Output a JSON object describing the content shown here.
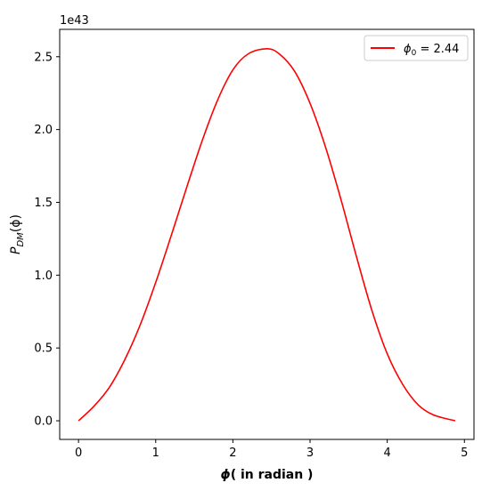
{
  "chart_data": {
    "type": "line",
    "xlabel_sym": "ϕ",
    "xlabel_rest": "( in radian )",
    "ylabel": {
      "base": "P",
      "sub": "DM",
      "rest": "(ϕ)"
    },
    "offset_text": "1e43",
    "xlim": [
      -0.244,
      5.124
    ],
    "ylim": [
      -0.128,
      2.688
    ],
    "xticks": [
      0,
      1,
      2,
      3,
      4,
      5
    ],
    "yticks": [
      0.0,
      0.5,
      1.0,
      1.5,
      2.0,
      2.5
    ],
    "xtick_labels": [
      "0",
      "1",
      "2",
      "3",
      "4",
      "5"
    ],
    "ytick_labels": [
      "0.0",
      "0.5",
      "1.0",
      "1.5",
      "2.0",
      "2.5"
    ],
    "legend_placement": "top-right",
    "grid": false,
    "series": [
      {
        "name_sym": "ϕ",
        "name_sub": "0",
        "name_rest": " = 2.44",
        "color": "#ff0000",
        "x": [
          0.0,
          0.2,
          0.4,
          0.6,
          0.8,
          1.0,
          1.2,
          1.4,
          1.6,
          1.8,
          2.0,
          2.2,
          2.44,
          2.6,
          2.8,
          3.0,
          3.2,
          3.4,
          3.6,
          3.8,
          4.0,
          4.2,
          4.4,
          4.6,
          4.88
        ],
        "y": [
          0.0,
          0.1,
          0.23,
          0.42,
          0.66,
          0.95,
          1.27,
          1.6,
          1.92,
          2.2,
          2.41,
          2.52,
          2.555,
          2.52,
          2.4,
          2.18,
          1.88,
          1.52,
          1.13,
          0.76,
          0.46,
          0.25,
          0.11,
          0.04,
          0.0
        ]
      }
    ]
  }
}
